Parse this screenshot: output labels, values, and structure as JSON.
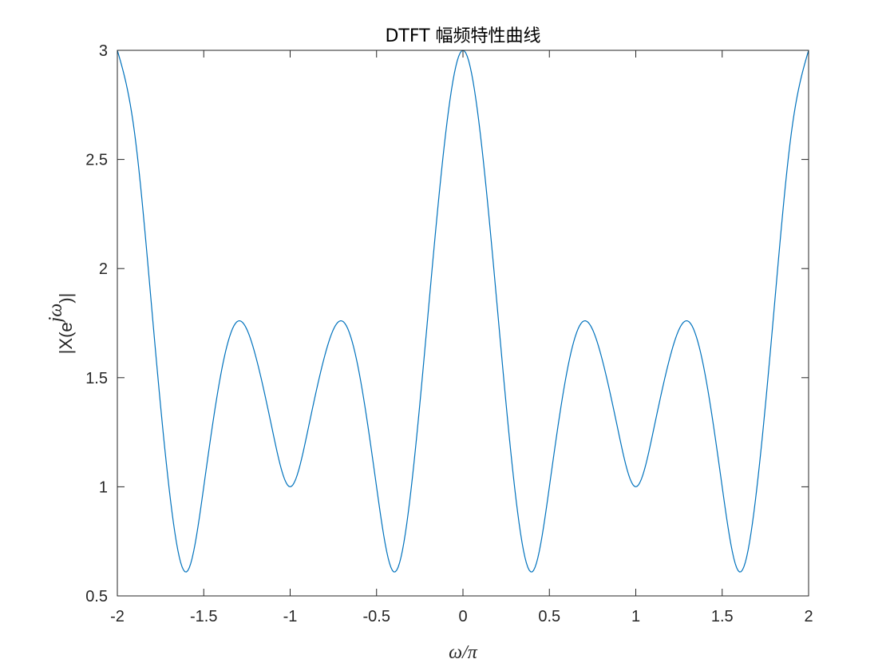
{
  "chart_data": {
    "type": "line",
    "title": "DTFT 幅频特性曲线",
    "xlabel": "ω/π",
    "ylabel": "|X(e^{jω})|",
    "ylabel_parts": {
      "prefix": "|X(e",
      "superscript": "jω",
      "suffix": ")|"
    },
    "xlim": [
      -2,
      2
    ],
    "ylim": [
      0.5,
      3
    ],
    "x_ticks": [
      -2,
      -1.5,
      -1,
      -0.5,
      0,
      0.5,
      1,
      1.5,
      2
    ],
    "x_tick_labels": [
      "-2",
      "-1.5",
      "-1",
      "-0.5",
      "0",
      "0.5",
      "1",
      "1.5",
      "2"
    ],
    "y_ticks": [
      0.5,
      1,
      1.5,
      2,
      2.5,
      3
    ],
    "y_tick_labels": [
      "0.5",
      "1",
      "1.5",
      "2",
      "2.5",
      "3"
    ],
    "grid": false,
    "line_color": "#0072BD",
    "series": [
      {
        "x": [
          -2,
          -1.9,
          -1.8,
          -1.7,
          -1.6,
          -1.5,
          -1.4,
          -1.3,
          -1.2,
          -1.1,
          -1,
          -0.9,
          -0.8,
          -0.7,
          -0.6,
          -0.5,
          -0.4,
          -0.3,
          -0.2,
          -0.1,
          0,
          0.1,
          0.2,
          0.3,
          0.4,
          0.5,
          0.6,
          0.7,
          0.8,
          0.9,
          1,
          1.1,
          1.2,
          1.3,
          1.4,
          1.5,
          1.6,
          1.7,
          1.8,
          1.9,
          2
        ],
        "values": [
          3,
          2.62,
          1.81,
          0.99,
          0.61,
          1.0,
          1.52,
          1.76,
          1.6,
          1.25,
          1.0,
          1.25,
          1.6,
          1.76,
          1.52,
          1.0,
          0.61,
          0.99,
          1.81,
          2.62,
          3,
          2.62,
          1.81,
          0.99,
          0.61,
          1.0,
          1.52,
          1.76,
          1.6,
          1.25,
          1.0,
          1.25,
          1.6,
          1.76,
          1.52,
          1.0,
          0.61,
          0.99,
          1.81,
          2.62,
          3
        ]
      }
    ]
  }
}
